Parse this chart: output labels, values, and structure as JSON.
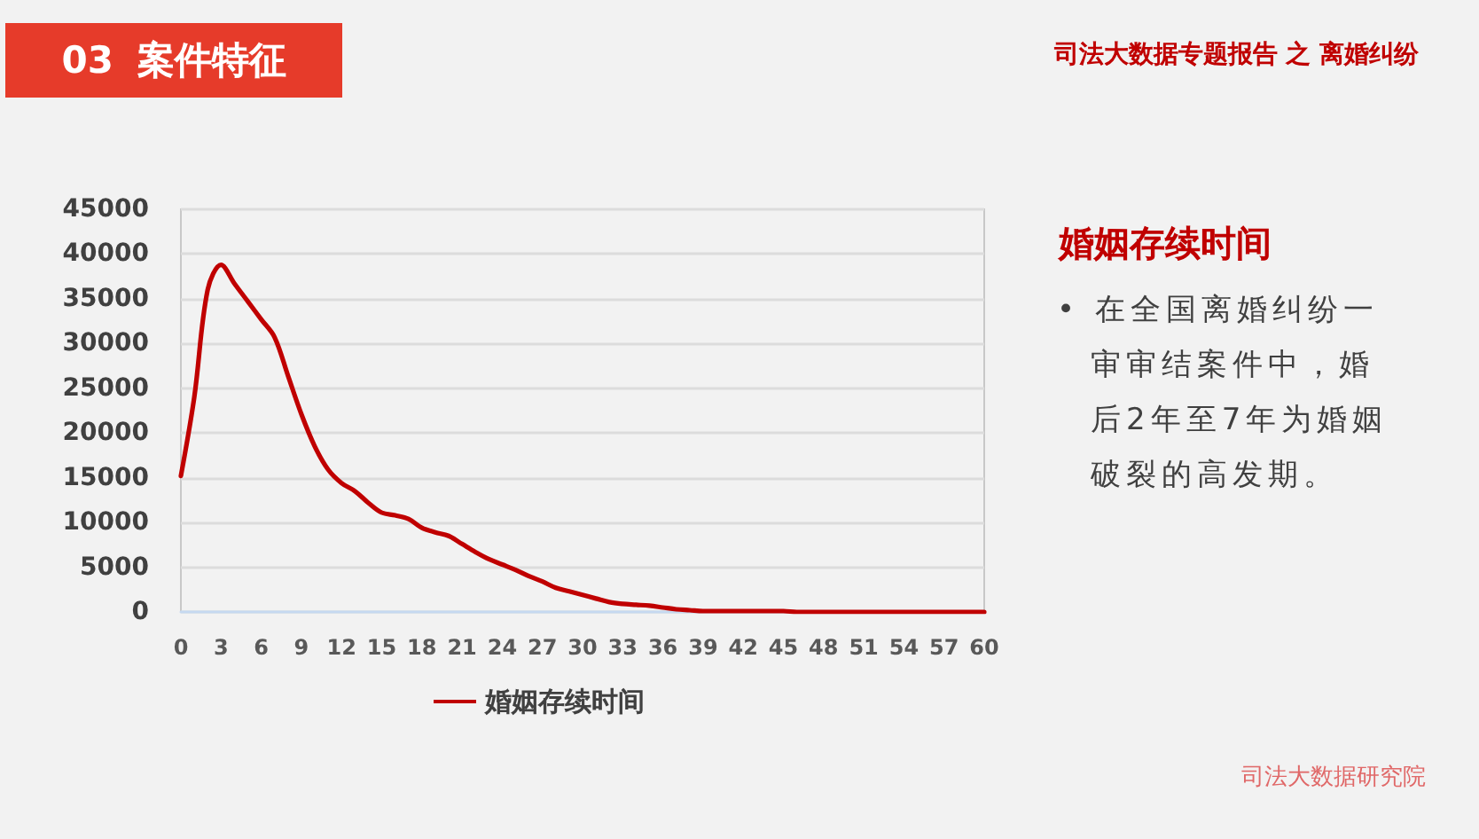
{
  "chart_data": {
    "type": "line",
    "title": "03 案件特征",
    "subtitle": "司法大数据专题报告 之 离婚纠纷",
    "annotations": [
      "婚姻存续时间",
      "• 在全国离婚纠纷一审审结案件中，婚后2年至7年为婚姻破裂的高发期。",
      "司法大数据研究院"
    ],
    "x": [
      0,
      1,
      2,
      3,
      4,
      5,
      6,
      7,
      8,
      9,
      10,
      11,
      12,
      13,
      14,
      15,
      16,
      17,
      18,
      19,
      20,
      21,
      22,
      23,
      24,
      25,
      26,
      27,
      28,
      29,
      30,
      31,
      32,
      33,
      34,
      35,
      36,
      37,
      38,
      39,
      40,
      41,
      42,
      43,
      44,
      45,
      46,
      47,
      48,
      49,
      50,
      51,
      52,
      53,
      54,
      55,
      56,
      57,
      58,
      59,
      60
    ],
    "series": [
      {
        "name": "婚姻存续时间",
        "color": "#c00000",
        "values": [
          15200,
          24000,
          36000,
          38800,
          36700,
          34700,
          32700,
          30700,
          26400,
          22100,
          18500,
          15900,
          14400,
          13500,
          12200,
          11100,
          10800,
          10400,
          9400,
          8900,
          8500,
          7600,
          6700,
          5900,
          5300,
          4700,
          4000,
          3400,
          2700,
          2300,
          1900,
          1500,
          1100,
          900,
          800,
          700,
          500,
          300,
          200,
          100,
          100,
          100,
          100,
          100,
          100,
          100,
          0,
          0,
          0,
          0,
          0,
          0,
          0,
          0,
          0,
          0,
          0,
          0,
          0,
          0,
          0
        ]
      }
    ],
    "xlim": [
      0,
      60
    ],
    "xticks": [
      0,
      3,
      6,
      9,
      12,
      15,
      18,
      21,
      24,
      27,
      30,
      33,
      36,
      39,
      42,
      45,
      48,
      51,
      54,
      57,
      60
    ],
    "ylim": [
      0,
      45000
    ],
    "yticks": [
      0,
      5000,
      10000,
      15000,
      20000,
      25000,
      30000,
      35000,
      40000,
      45000
    ],
    "grid": "y",
    "legend": "bottom",
    "marker": "none",
    "line_style": "solid"
  }
}
